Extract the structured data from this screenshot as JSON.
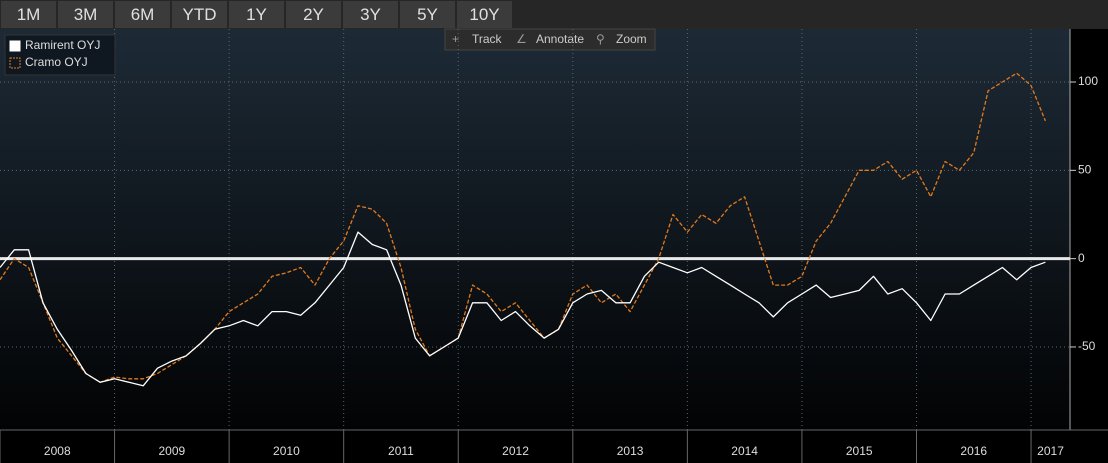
{
  "toolbar": {
    "ranges": [
      "1M",
      "3M",
      "6M",
      "YTD",
      "1Y",
      "2Y",
      "3Y",
      "5Y",
      "10Y"
    ],
    "tools": [
      "Track",
      "Annotate",
      "Zoom"
    ]
  },
  "chart_data": {
    "type": "line",
    "x": [
      2008,
      2008.125,
      2008.25,
      2008.375,
      2008.5,
      2008.625,
      2008.75,
      2008.875,
      2009,
      2009.125,
      2009.25,
      2009.375,
      2009.5,
      2009.625,
      2009.75,
      2009.875,
      2010,
      2010.125,
      2010.25,
      2010.375,
      2010.5,
      2010.625,
      2010.75,
      2010.875,
      2011,
      2011.125,
      2011.25,
      2011.375,
      2011.5,
      2011.625,
      2011.75,
      2011.875,
      2012,
      2012.125,
      2012.25,
      2012.375,
      2012.5,
      2012.625,
      2012.75,
      2012.875,
      2013,
      2013.125,
      2013.25,
      2013.375,
      2013.5,
      2013.625,
      2013.75,
      2013.875,
      2014,
      2014.125,
      2014.25,
      2014.375,
      2014.5,
      2014.625,
      2014.75,
      2014.875,
      2015,
      2015.125,
      2015.25,
      2015.375,
      2015.5,
      2015.625,
      2015.75,
      2015.875,
      2016,
      2016.125,
      2016.25,
      2016.375,
      2016.5,
      2016.625,
      2016.75,
      2016.875,
      2017,
      2017.125
    ],
    "series": [
      {
        "name": "Ramirent OYJ",
        "color": "#ffffff",
        "dash": false,
        "values": [
          -5,
          5,
          5,
          -25,
          -40,
          -52,
          -65,
          -70,
          -68,
          -70,
          -72,
          -62,
          -58,
          -55,
          -48,
          -40,
          -38,
          -35,
          -38,
          -30,
          -30,
          -32,
          -25,
          -15,
          -5,
          15,
          8,
          5,
          -15,
          -45,
          -55,
          -50,
          -45,
          -25,
          -25,
          -35,
          -30,
          -38,
          -45,
          -40,
          -25,
          -20,
          -18,
          -25,
          -25,
          -10,
          -2,
          -5,
          -8,
          -5,
          -10,
          -15,
          -20,
          -25,
          -33,
          -25,
          -20,
          -15,
          -22,
          -20,
          -18,
          -10,
          -20,
          -17,
          -25,
          -35,
          -20,
          -20,
          -15,
          -10,
          -5,
          -12,
          -5,
          -2
        ]
      },
      {
        "name": "Cramo OYJ",
        "color": "#e07a1f",
        "dash": true,
        "values": [
          -12,
          0,
          -5,
          -25,
          -45,
          -55,
          -65,
          -70,
          -67,
          -68,
          -68,
          -65,
          -60,
          -55,
          -48,
          -40,
          -30,
          -25,
          -20,
          -10,
          -8,
          -5,
          -15,
          0,
          10,
          30,
          28,
          20,
          -5,
          -40,
          -55,
          -50,
          -45,
          -15,
          -20,
          -30,
          -25,
          -35,
          -45,
          -40,
          -20,
          -15,
          -25,
          -20,
          -30,
          -15,
          0,
          25,
          15,
          25,
          20,
          30,
          35,
          10,
          -15,
          -15,
          -10,
          10,
          20,
          35,
          50,
          50,
          55,
          45,
          50,
          35,
          55,
          50,
          60,
          95,
          100,
          105,
          98,
          78
        ]
      }
    ],
    "xlim": [
      2008,
      2017.34
    ],
    "xticks": [
      {
        "value": 2008,
        "label": "2008"
      },
      {
        "value": 2009,
        "label": "2009"
      },
      {
        "value": 2010,
        "label": "2010"
      },
      {
        "value": 2011,
        "label": "2011"
      },
      {
        "value": 2012,
        "label": "2012"
      },
      {
        "value": 2013,
        "label": "2013"
      },
      {
        "value": 2014,
        "label": "2014"
      },
      {
        "value": 2015,
        "label": "2015"
      },
      {
        "value": 2016,
        "label": "2016"
      },
      {
        "value": 2017,
        "label": "2017"
      }
    ],
    "ylim": [
      -97,
      130
    ],
    "yticks": [
      -50,
      0,
      50,
      100
    ],
    "hline": 0,
    "grid": true,
    "legend": "upper left"
  }
}
